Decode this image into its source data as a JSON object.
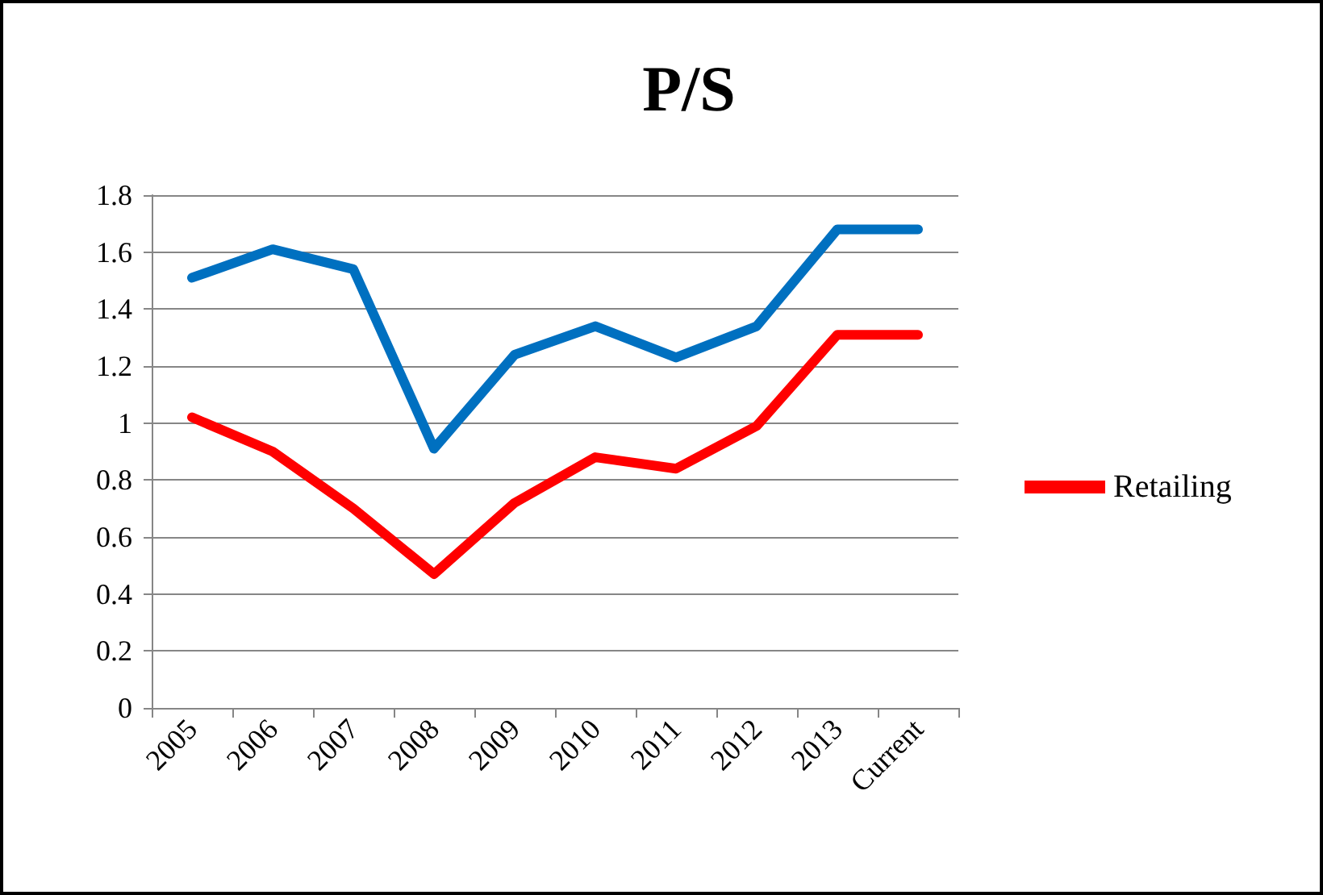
{
  "chart_data": {
    "type": "line",
    "title": "P/S",
    "categories": [
      "2005",
      "2006",
      "2007",
      "2008",
      "2009",
      "2010",
      "2011",
      "2012",
      "2013",
      "Current"
    ],
    "series": [
      {
        "name": "Retailing",
        "color": "#ff0000",
        "values": [
          1.02,
          0.9,
          0.7,
          0.47,
          0.72,
          0.88,
          0.84,
          0.99,
          1.31,
          1.31
        ]
      },
      {
        "color": "#0070c0",
        "values": [
          1.51,
          1.61,
          1.54,
          0.91,
          1.24,
          1.34,
          1.23,
          1.34,
          1.68,
          1.68
        ]
      }
    ],
    "ylim": [
      0,
      1.8
    ],
    "yticks": [
      0,
      0.2,
      0.4,
      0.6,
      0.8,
      1,
      1.2,
      1.4,
      1.6,
      1.8
    ],
    "grid": "y",
    "legend": "right",
    "marker": "none",
    "line_style": "solid"
  }
}
